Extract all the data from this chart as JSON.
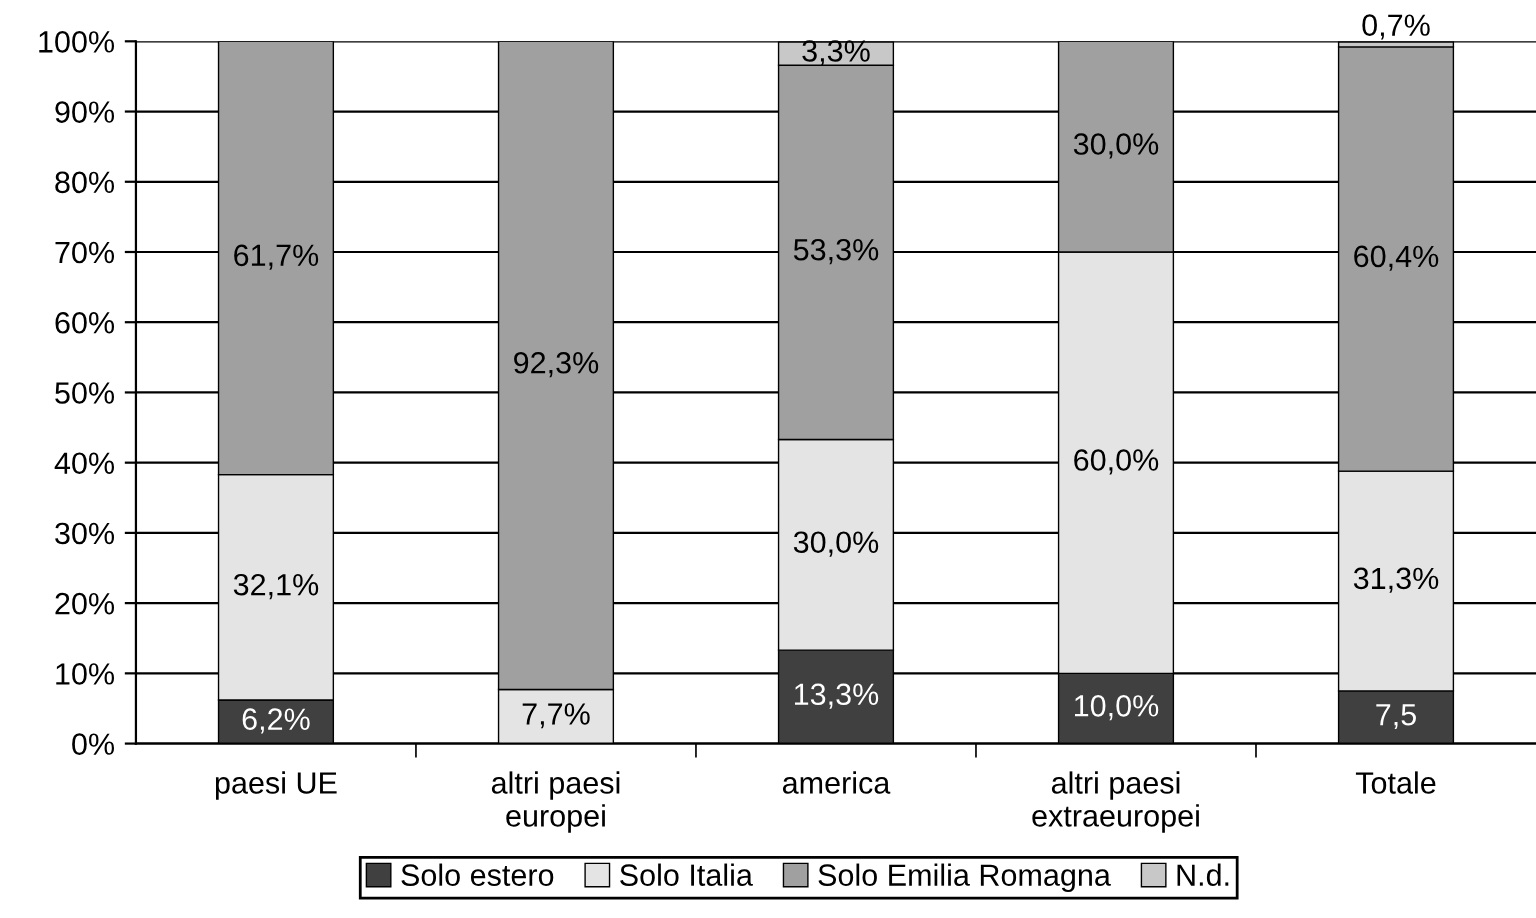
{
  "chart_data": {
    "type": "bar",
    "stacked": true,
    "categories": [
      "paesi UE",
      "altri paesi\neuropei",
      "america",
      "altri paesi\nextraeuropei",
      "Totale"
    ],
    "series": [
      {
        "name": "Solo estero",
        "color": "#404040",
        "values": [
          6.2,
          null,
          13.3,
          10.0,
          7.5
        ],
        "value_labels": [
          "6,2%",
          null,
          "13,3%",
          "10,0%",
          "7,5"
        ]
      },
      {
        "name": "Solo Italia",
        "color": "#e4e4e4",
        "values": [
          32.1,
          7.7,
          30.0,
          60.0,
          31.3
        ],
        "value_labels": [
          "32,1%",
          "7,7%",
          "30,0%",
          "60,0%",
          "31,3%"
        ]
      },
      {
        "name": "Solo Emilia Romagna",
        "color": "#a0a0a0",
        "values": [
          61.7,
          92.3,
          53.3,
          30.0,
          60.4
        ],
        "value_labels": [
          "61,7%",
          "92,3%",
          "53,3%",
          "30,0%",
          "60,4%"
        ]
      },
      {
        "name": "N.d.",
        "color": "#c8c8c8",
        "values": [
          null,
          null,
          3.3,
          null,
          0.7
        ],
        "value_labels": [
          null,
          null,
          "3,3%",
          null,
          "0,7%"
        ]
      }
    ],
    "ylim": [
      0,
      100
    ],
    "yticks": [
      {
        "value": 0,
        "label": "0%"
      },
      {
        "value": 10,
        "label": "10%"
      },
      {
        "value": 20,
        "label": "20%"
      },
      {
        "value": 30,
        "label": "30%"
      },
      {
        "value": 40,
        "label": "40%"
      },
      {
        "value": 50,
        "label": "50%"
      },
      {
        "value": 60,
        "label": "60%"
      },
      {
        "value": 70,
        "label": "70%"
      },
      {
        "value": 80,
        "label": "80%"
      },
      {
        "value": 90,
        "label": "90%"
      },
      {
        "value": 100,
        "label": "100%"
      }
    ],
    "grid": "y",
    "legend": "bottom"
  }
}
